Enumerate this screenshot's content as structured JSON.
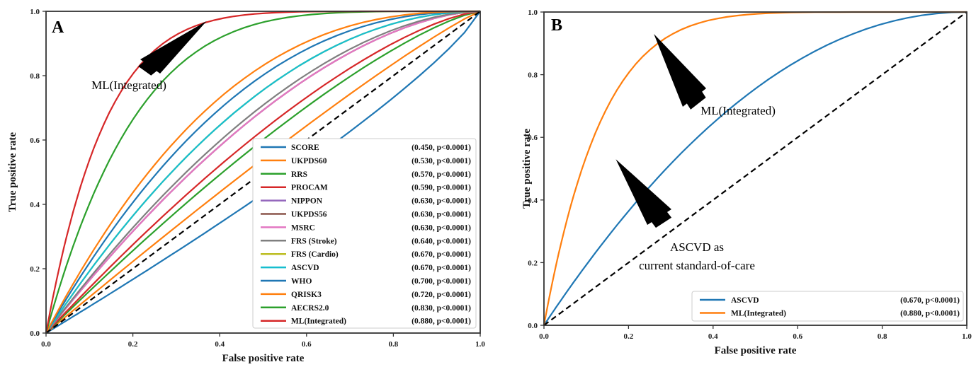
{
  "chart_data": [
    {
      "type": "line",
      "panel_label": "A",
      "title": "",
      "xlabel": "False positive rate",
      "ylabel": "True positive rate",
      "xlim": [
        0,
        1
      ],
      "ylim": [
        0,
        1
      ],
      "xticks": [
        "0.0",
        "0.2",
        "0.4",
        "0.6",
        "0.8",
        "1.0"
      ],
      "yticks": [
        "0.0",
        "0.2",
        "0.4",
        "0.6",
        "0.8",
        "1.0"
      ],
      "grid": false,
      "legend_position": "bottom-right",
      "reference_line": {
        "style": "dashed",
        "color": "#000000",
        "from": [
          0,
          0
        ],
        "to": [
          1,
          1
        ]
      },
      "series": [
        {
          "name": "SCORE",
          "auc_text": "(0.450, p<0.0001)",
          "auc": 0.45,
          "color": "#1f77b4"
        },
        {
          "name": "UKPDS60",
          "auc_text": "(0.530, p<0.0001)",
          "auc": 0.53,
          "color": "#ff7f0e"
        },
        {
          "name": "RRS",
          "auc_text": "(0.570, p<0.0001)",
          "auc": 0.57,
          "color": "#2ca02c"
        },
        {
          "name": "PROCAM",
          "auc_text": "(0.590, p<0.0001)",
          "auc": 0.59,
          "color": "#d62728"
        },
        {
          "name": "NIPPON",
          "auc_text": "(0.630, p<0.0001)",
          "auc": 0.63,
          "color": "#9467bd"
        },
        {
          "name": "UKPDS56",
          "auc_text": "(0.630, p<0.0001)",
          "auc": 0.63,
          "color": "#8c564b"
        },
        {
          "name": "MSRC",
          "auc_text": "(0.630, p<0.0001)",
          "auc": 0.63,
          "color": "#e377c2"
        },
        {
          "name": "FRS (Stroke)",
          "auc_text": "(0.640, p<0.0001)",
          "auc": 0.64,
          "color": "#7f7f7f"
        },
        {
          "name": "FRS (Cardio)",
          "auc_text": "(0.670, p<0.0001)",
          "auc": 0.67,
          "color": "#bcbd22"
        },
        {
          "name": "ASCVD",
          "auc_text": "(0.670, p<0.0001)",
          "auc": 0.67,
          "color": "#17becf"
        },
        {
          "name": "WHO",
          "auc_text": "(0.700, p<0.0001)",
          "auc": 0.7,
          "color": "#1f77b4"
        },
        {
          "name": "QRISK3",
          "auc_text": "(0.720, p<0.0001)",
          "auc": 0.72,
          "color": "#ff7f0e"
        },
        {
          "name": "AECRS2.0",
          "auc_text": "(0.830, p<0.0001)",
          "auc": 0.83,
          "color": "#2ca02c"
        },
        {
          "name": "ML(Integrated)",
          "auc_text": "(0.880, p<0.0001)",
          "auc": 0.88,
          "color": "#d62728"
        }
      ],
      "annotations": [
        {
          "text": "ML(Integrated)",
          "arrow_tip": [
            0.37,
            0.97
          ]
        }
      ]
    },
    {
      "type": "line",
      "panel_label": "B",
      "title": "",
      "xlabel": "False positive rate",
      "ylabel": "True positive rate",
      "xlim": [
        0,
        1
      ],
      "ylim": [
        0,
        1
      ],
      "xticks": [
        "0.0",
        "0.2",
        "0.4",
        "0.6",
        "0.8",
        "1.0"
      ],
      "yticks": [
        "0.0",
        "0.2",
        "0.4",
        "0.6",
        "0.8",
        "1.0"
      ],
      "grid": false,
      "legend_position": "bottom-right",
      "reference_line": {
        "style": "dashed",
        "color": "#000000",
        "from": [
          0,
          0
        ],
        "to": [
          1,
          1
        ]
      },
      "series": [
        {
          "name": "ASCVD",
          "auc_text": "(0.670, p<0.0001)",
          "auc": 0.67,
          "color": "#1f77b4"
        },
        {
          "name": "ML(Integrated)",
          "auc_text": "(0.880, p<0.0001)",
          "auc": 0.88,
          "color": "#ff7f0e"
        }
      ],
      "annotations": [
        {
          "text": "ML(Integrated)",
          "arrow_tip": [
            0.26,
            0.93
          ]
        },
        {
          "text_lines": [
            "ASCVD as",
            "current standard-of-care"
          ],
          "arrow_tip": [
            0.17,
            0.53
          ]
        }
      ]
    }
  ]
}
